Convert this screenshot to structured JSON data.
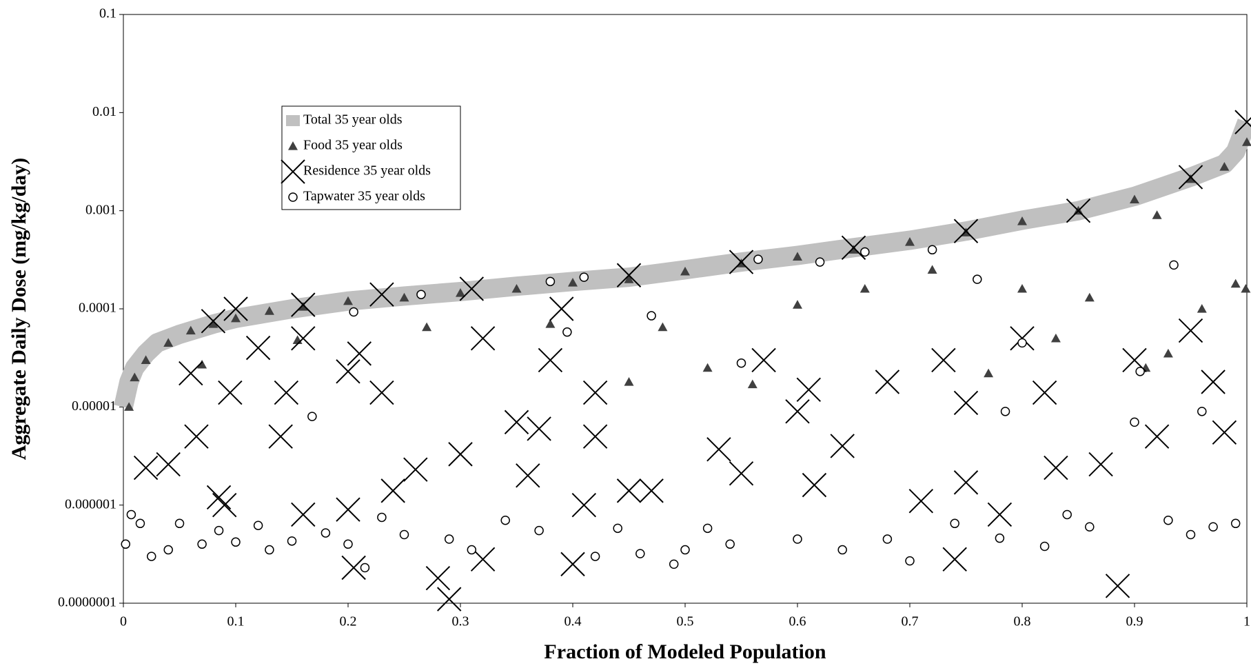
{
  "chart_data": {
    "type": "scatter",
    "x_label": "Fraction of Modeled Population",
    "y_label": "Aggregate Daily Dose (mg/kg/day)",
    "xlim": [
      0,
      1
    ],
    "xticks": [
      0,
      0.1,
      0.2,
      0.3,
      0.4,
      0.5,
      0.6,
      0.7,
      0.8,
      0.9,
      1
    ],
    "ylim": [
      1e-07,
      0.1
    ],
    "ylog": true,
    "yticks": [
      {
        "value": 1e-07,
        "label": "0.0000001"
      },
      1e-06,
      1e-05,
      0.0001,
      0.001,
      0.01,
      0.1
    ],
    "legend": "upper-left",
    "series": [
      {
        "name": "Total 35 year olds",
        "color": "#c0c0c0",
        "marker": "band",
        "x": [
          0,
          0.005,
          0.01,
          0.02,
          0.03,
          0.05,
          0.08,
          0.1,
          0.15,
          0.2,
          0.25,
          0.3,
          0.35,
          0.4,
          0.45,
          0.5,
          0.55,
          0.6,
          0.65,
          0.7,
          0.75,
          0.8,
          0.85,
          0.9,
          0.95,
          0.98,
          0.99,
          1
        ],
        "values": [
          1e-05,
          1.8e-05,
          2.5e-05,
          3.5e-05,
          4.5e-05,
          5.5e-05,
          7e-05,
          8e-05,
          0.0001,
          0.00012,
          0.000135,
          0.00015,
          0.00017,
          0.00019,
          0.00021,
          0.00025,
          0.0003,
          0.00035,
          0.00042,
          0.0005,
          0.00062,
          0.0008,
          0.001,
          0.0014,
          0.0022,
          0.003,
          0.004,
          0.008
        ]
      },
      {
        "name": "Food 35 year olds",
        "color": "#404040",
        "marker": "triangle",
        "x": [
          0.005,
          0.01,
          0.02,
          0.04,
          0.06,
          0.08,
          0.1,
          0.13,
          0.16,
          0.2,
          0.25,
          0.3,
          0.35,
          0.4,
          0.45,
          0.5,
          0.55,
          0.6,
          0.65,
          0.7,
          0.75,
          0.8,
          0.85,
          0.9,
          0.95,
          0.98,
          1,
          0.07,
          0.155,
          0.27,
          0.38,
          0.45,
          0.48,
          0.52,
          0.56,
          0.6,
          0.66,
          0.72,
          0.77,
          0.8,
          0.83,
          0.86,
          0.91,
          0.93,
          0.96,
          0.99,
          0.999,
          0.92
        ],
        "values": [
          1e-05,
          2e-05,
          3e-05,
          4.5e-05,
          6e-05,
          7e-05,
          8e-05,
          9.5e-05,
          0.000105,
          0.00012,
          0.00013,
          0.000145,
          0.00016,
          0.000185,
          0.0002,
          0.00024,
          0.00029,
          0.00034,
          0.0004,
          0.00048,
          0.0006,
          0.00078,
          0.001,
          0.0013,
          0.0021,
          0.0028,
          0.005,
          2.7e-05,
          4.8e-05,
          6.5e-05,
          7e-05,
          1.8e-05,
          6.5e-05,
          2.5e-05,
          1.7e-05,
          0.00011,
          0.00016,
          0.00025,
          2.2e-05,
          0.00016,
          5e-05,
          0.00013,
          2.5e-05,
          3.5e-05,
          0.0001,
          0.00018,
          0.00016,
          0.0009
        ]
      },
      {
        "name": "Residence 35 year olds",
        "color": "#000000",
        "marker": "x",
        "x": [
          0.02,
          0.04,
          0.06,
          0.065,
          0.085,
          0.09,
          0.095,
          0.1,
          0.12,
          0.14,
          0.145,
          0.16,
          0.16,
          0.16,
          0.2,
          0.2,
          0.205,
          0.21,
          0.23,
          0.24,
          0.26,
          0.28,
          0.29,
          0.3,
          0.32,
          0.32,
          0.35,
          0.36,
          0.37,
          0.38,
          0.39,
          0.4,
          0.41,
          0.42,
          0.42,
          0.45,
          0.47,
          0.53,
          0.55,
          0.57,
          0.6,
          0.61,
          0.615,
          0.64,
          0.68,
          0.71,
          0.73,
          0.74,
          0.75,
          0.75,
          0.78,
          0.8,
          0.82,
          0.83,
          0.87,
          0.885,
          0.9,
          0.92,
          0.95,
          0.97,
          0.98,
          1,
          0.08,
          0.23,
          0.31,
          0.45,
          0.55,
          0.65,
          0.75,
          0.85,
          0.95
        ],
        "values": [
          2.4e-06,
          2.6e-06,
          2.2e-05,
          5e-06,
          1.2e-06,
          1e-06,
          1.4e-05,
          0.0001,
          4e-05,
          5e-06,
          1.4e-05,
          5e-05,
          0.00011,
          8e-07,
          9e-07,
          2.3e-05,
          2.3e-07,
          3.5e-05,
          1.4e-05,
          1.4e-06,
          2.3e-06,
          1.8e-07,
          1.1e-07,
          3.3e-06,
          5e-05,
          2.8e-07,
          7e-06,
          2e-06,
          6e-06,
          3e-05,
          0.0001,
          2.5e-07,
          1e-06,
          5e-06,
          1.4e-05,
          1.4e-06,
          1.4e-06,
          3.7e-06,
          2.1e-06,
          3e-05,
          9e-06,
          1.5e-05,
          1.6e-06,
          4e-06,
          1.8e-05,
          1.1e-06,
          3e-05,
          2.8e-07,
          1.1e-05,
          1.7e-06,
          8e-07,
          5e-05,
          1.4e-05,
          2.4e-06,
          2.6e-06,
          1.5e-07,
          3e-05,
          5e-06,
          6e-05,
          1.8e-05,
          5.5e-06,
          0.008,
          7.5e-05,
          0.00014,
          0.00016,
          0.00022,
          0.0003,
          0.00042,
          0.00062,
          0.001,
          0.0022
        ]
      },
      {
        "name": "Tapwater 35 year olds",
        "color": "#000000",
        "marker": "circle",
        "x": [
          0.002,
          0.007,
          0.015,
          0.025,
          0.04,
          0.05,
          0.07,
          0.085,
          0.1,
          0.12,
          0.13,
          0.15,
          0.168,
          0.18,
          0.2,
          0.205,
          0.215,
          0.23,
          0.25,
          0.265,
          0.29,
          0.31,
          0.34,
          0.37,
          0.38,
          0.395,
          0.41,
          0.42,
          0.44,
          0.46,
          0.47,
          0.49,
          0.5,
          0.52,
          0.54,
          0.55,
          0.565,
          0.6,
          0.62,
          0.64,
          0.66,
          0.68,
          0.7,
          0.72,
          0.74,
          0.76,
          0.78,
          0.785,
          0.8,
          0.82,
          0.84,
          0.86,
          0.9,
          0.905,
          0.93,
          0.935,
          0.95,
          0.96,
          0.97,
          0.99
        ],
        "values": [
          4e-07,
          8e-07,
          6.5e-07,
          3e-07,
          3.5e-07,
          6.5e-07,
          4e-07,
          5.5e-07,
          4.2e-07,
          6.2e-07,
          3.5e-07,
          4.3e-07,
          8e-06,
          5.2e-07,
          4e-07,
          9.3e-05,
          2.3e-07,
          7.5e-07,
          5e-07,
          0.00014,
          4.5e-07,
          3.5e-07,
          7e-07,
          5.5e-07,
          0.00019,
          5.8e-05,
          0.00021,
          3e-07,
          5.8e-07,
          3.2e-07,
          8.5e-05,
          2.5e-07,
          3.5e-07,
          5.8e-07,
          4e-07,
          2.8e-05,
          0.00032,
          4.5e-07,
          0.0003,
          3.5e-07,
          0.00038,
          4.5e-07,
          2.7e-07,
          0.0004,
          6.5e-07,
          0.0002,
          4.6e-07,
          9e-06,
          4.5e-05,
          3.8e-07,
          8e-07,
          6e-07,
          7e-06,
          2.3e-05,
          7e-07,
          0.00028,
          5e-07,
          9e-06,
          6e-07,
          6.5e-07
        ]
      }
    ]
  }
}
